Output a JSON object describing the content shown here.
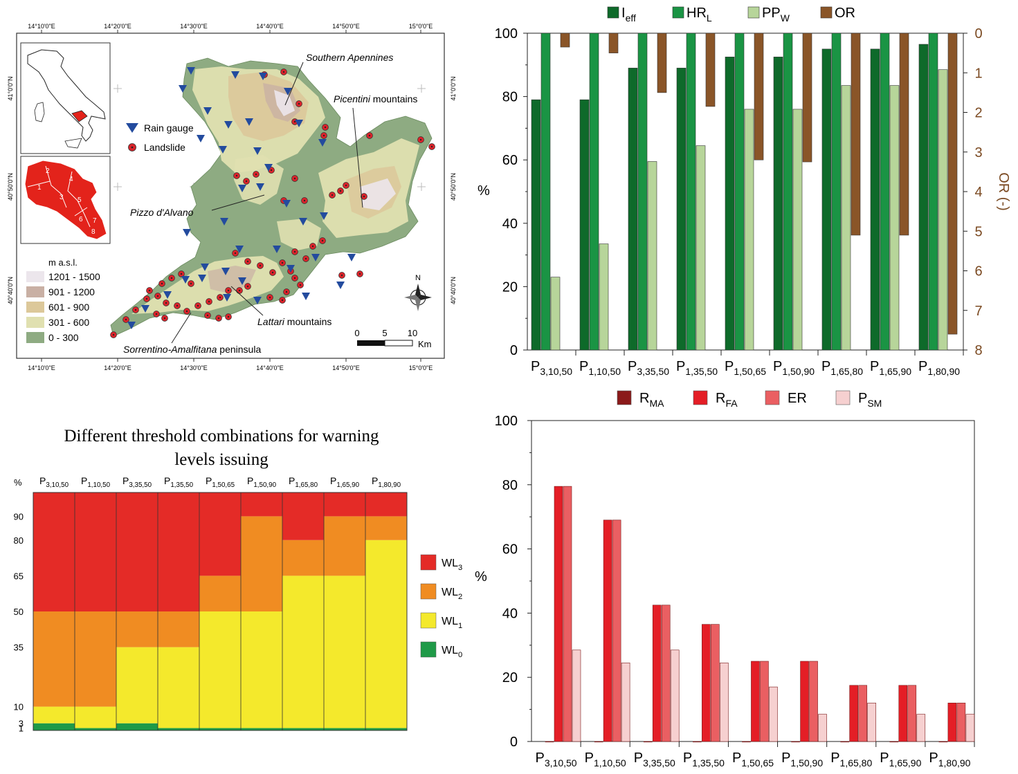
{
  "map": {
    "coord_top": [
      "14°10'0\"E",
      "14°20'0\"E",
      "14°30'0\"E",
      "14°40'0\"E",
      "14°50'0\"E",
      "15°0'0\"E"
    ],
    "coord_bottom": [
      "14°10'0\"E",
      "14°20'0\"E",
      "14°30'0\"E",
      "14°40'0\"E",
      "14°50'0\"E",
      "15°0'0\"E"
    ],
    "coord_left": [
      "41°0'0\"N",
      "40°50'0\"N",
      "40°40'0\"N"
    ],
    "coord_right": [
      "41°0'0\"N",
      "40°50'0\"N",
      "40°40'0\"N"
    ],
    "legend_rain_gauge": "Rain gauge",
    "legend_landslide": "Landslide",
    "elevation_title": "m a.s.l.",
    "elevation_classes": [
      {
        "label": "1201 - 1500",
        "color": "#ece6ec"
      },
      {
        "label": "901 - 1200",
        "color": "#c9b0a4"
      },
      {
        "label": "601 - 900",
        "color": "#dcc89a"
      },
      {
        "label": "301 - 600",
        "color": "#e0e0b0"
      },
      {
        "label": "0 - 300",
        "color": "#8eab82"
      }
    ],
    "labels": {
      "southern_apennines": "Southern Apennines",
      "picentini_italic": "Picentini",
      "picentini_rest": " mountains",
      "pizzo": "Pizzo d'Alvano",
      "lattari_italic": "Lattari",
      "lattari_rest": " mountains",
      "sorrentino_italic": "Sorrentino-Amalfitana",
      "sorrentino_rest": " peninsula"
    },
    "region_numbers": [
      "1",
      "2",
      "3",
      "4",
      "5",
      "6",
      "7",
      "8"
    ],
    "scale_ticks": [
      "0",
      "5",
      "10"
    ],
    "scale_unit": "Km",
    "north": "N"
  },
  "chart_top": {
    "type": "bar",
    "categories": [
      {
        "main": "P",
        "sub": "3,10,50"
      },
      {
        "main": "P",
        "sub": "1,10,50"
      },
      {
        "main": "P",
        "sub": "3,35,50"
      },
      {
        "main": "P",
        "sub": "1,35,50"
      },
      {
        "main": "P",
        "sub": "1,50,65"
      },
      {
        "main": "P",
        "sub": "1,50,90"
      },
      {
        "main": "P",
        "sub": "1,65,80"
      },
      {
        "main": "P",
        "sub": "1,65,90"
      },
      {
        "main": "P",
        "sub": "1,80,90"
      }
    ],
    "series": [
      {
        "name_main": "I",
        "name_sub": "eff",
        "color": "#0e6a2a",
        "values": [
          79,
          79,
          89,
          89,
          92.5,
          92.5,
          95,
          95,
          96.5
        ]
      },
      {
        "name_main": "HR",
        "name_sub": "L",
        "color": "#1a9444",
        "values": [
          100,
          100,
          100,
          100,
          100,
          100,
          100,
          100,
          100
        ]
      },
      {
        "name_main": "PP",
        "name_sub": "W",
        "color": "#b7d59a",
        "values": [
          23,
          33.5,
          59.5,
          64.5,
          76,
          76,
          83.5,
          83.5,
          88.5
        ]
      },
      {
        "name_main": "OR",
        "name_sub": "",
        "color": "#8a5528",
        "values": [
          0.35,
          0.5,
          1.5,
          1.85,
          3.2,
          3.25,
          5.1,
          5.1,
          7.6
        ]
      }
    ],
    "y_left_label": "%",
    "y_left_ticks": [
      "0",
      "20",
      "40",
      "60",
      "80",
      "100"
    ],
    "y_right_label": "OR (-)",
    "y_right_ticks": [
      "0",
      "1",
      "2",
      "3",
      "4",
      "5",
      "6",
      "7",
      "8"
    ],
    "ylim_left": [
      0,
      100
    ],
    "ylim_right": [
      0,
      8
    ]
  },
  "chart_warning": {
    "title_line1": "Different threshold combinations for warning",
    "title_line2": "levels issuing",
    "y_unit": "%",
    "y_ticks": [
      "1",
      "3",
      "10",
      "35",
      "50",
      "65",
      "80",
      "90"
    ],
    "categories": [
      {
        "main": "P",
        "sub": "3,10,50"
      },
      {
        "main": "P",
        "sub": "1,10,50"
      },
      {
        "main": "P",
        "sub": "3,35,50"
      },
      {
        "main": "P",
        "sub": "1,35,50"
      },
      {
        "main": "P",
        "sub": "1,50,65"
      },
      {
        "main": "P",
        "sub": "1,50,90"
      },
      {
        "main": "P",
        "sub": "1,65,80"
      },
      {
        "main": "P",
        "sub": "1,65,90"
      },
      {
        "main": "P",
        "sub": "1,80,90"
      }
    ],
    "thresholds": [
      [
        3,
        10,
        50
      ],
      [
        1,
        10,
        50
      ],
      [
        3,
        35,
        50
      ],
      [
        1,
        35,
        50
      ],
      [
        1,
        50,
        65
      ],
      [
        1,
        50,
        90
      ],
      [
        1,
        65,
        80
      ],
      [
        1,
        65,
        90
      ],
      [
        1,
        80,
        90
      ]
    ],
    "levels": [
      {
        "name_main": "WL",
        "name_sub": "3",
        "color": "#e42b27"
      },
      {
        "name_main": "WL",
        "name_sub": "2",
        "color": "#f08c22"
      },
      {
        "name_main": "WL",
        "name_sub": "1",
        "color": "#f4e92c"
      },
      {
        "name_main": "WL",
        "name_sub": "0",
        "color": "#1f9a48"
      }
    ]
  },
  "chart_bottom": {
    "type": "bar",
    "categories": [
      {
        "main": "P",
        "sub": "3,10,50"
      },
      {
        "main": "P",
        "sub": "1,10,50"
      },
      {
        "main": "P",
        "sub": "3,35,50"
      },
      {
        "main": "P",
        "sub": "1,35,50"
      },
      {
        "main": "P",
        "sub": "1,50,65"
      },
      {
        "main": "P",
        "sub": "1,50,90"
      },
      {
        "main": "P",
        "sub": "1,65,80"
      },
      {
        "main": "P",
        "sub": "1,65,90"
      },
      {
        "main": "P",
        "sub": "1,80,90"
      }
    ],
    "series": [
      {
        "name_main": "R",
        "name_sub": "MA",
        "color": "#8b1a1a",
        "values": [
          0,
          0,
          0,
          0,
          0,
          0,
          0,
          0,
          0
        ]
      },
      {
        "name_main": "R",
        "name_sub": "FA",
        "color": "#e41e26",
        "values": [
          79.5,
          69,
          42.5,
          36.5,
          25,
          25,
          17.5,
          17.5,
          12
        ]
      },
      {
        "name_main": "ER",
        "name_sub": "",
        "color": "#ea5f62",
        "values": [
          79.5,
          69,
          42.5,
          36.5,
          25,
          25,
          17.5,
          17.5,
          12
        ]
      },
      {
        "name_main": "P",
        "name_sub": "SM",
        "color": "#f6d0d0",
        "values": [
          28.5,
          24.5,
          28.5,
          24.5,
          17,
          8.5,
          12,
          8.5,
          8.5
        ]
      }
    ],
    "y_label": "%",
    "y_ticks": [
      "0",
      "20",
      "40",
      "60",
      "80",
      "100"
    ],
    "ylim": [
      0,
      100
    ]
  }
}
